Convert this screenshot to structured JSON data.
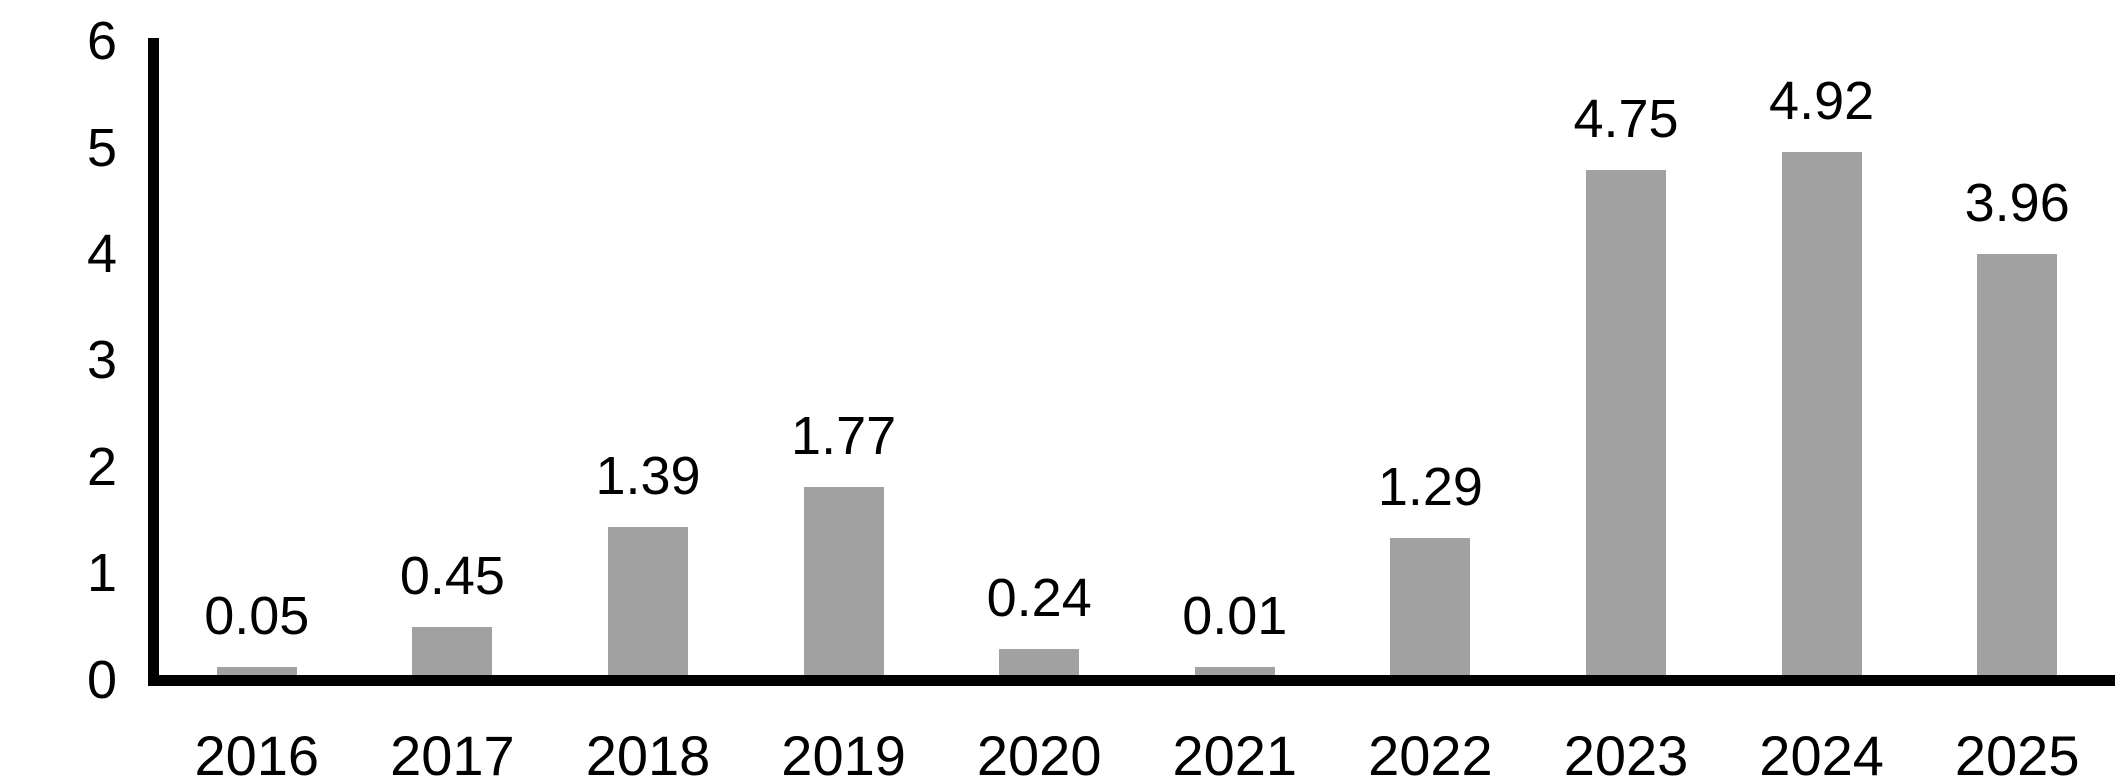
{
  "chart_data": {
    "type": "bar",
    "title": "",
    "xlabel": "",
    "ylabel": "",
    "categories": [
      "2016",
      "2017",
      "2018",
      "2019",
      "2020",
      "2021",
      "2022",
      "2023",
      "2024",
      "2025"
    ],
    "values": [
      0.05,
      0.45,
      1.39,
      1.77,
      0.24,
      0.01,
      1.29,
      4.75,
      4.92,
      3.96
    ],
    "data_labels": [
      "0.05",
      "0.45",
      "1.39",
      "1.77",
      "0.24",
      "0.01",
      "1.29",
      "4.75",
      "4.92",
      "3.96"
    ],
    "ylim": [
      0,
      6
    ],
    "y_ticks": [
      "0",
      "1",
      "2",
      "3",
      "4",
      "5",
      "6"
    ],
    "grid": false,
    "legend": false,
    "colors": {
      "bar": "#a1a1a1",
      "axis": "#000000",
      "text": "#000000",
      "background": "#ffffff"
    }
  }
}
